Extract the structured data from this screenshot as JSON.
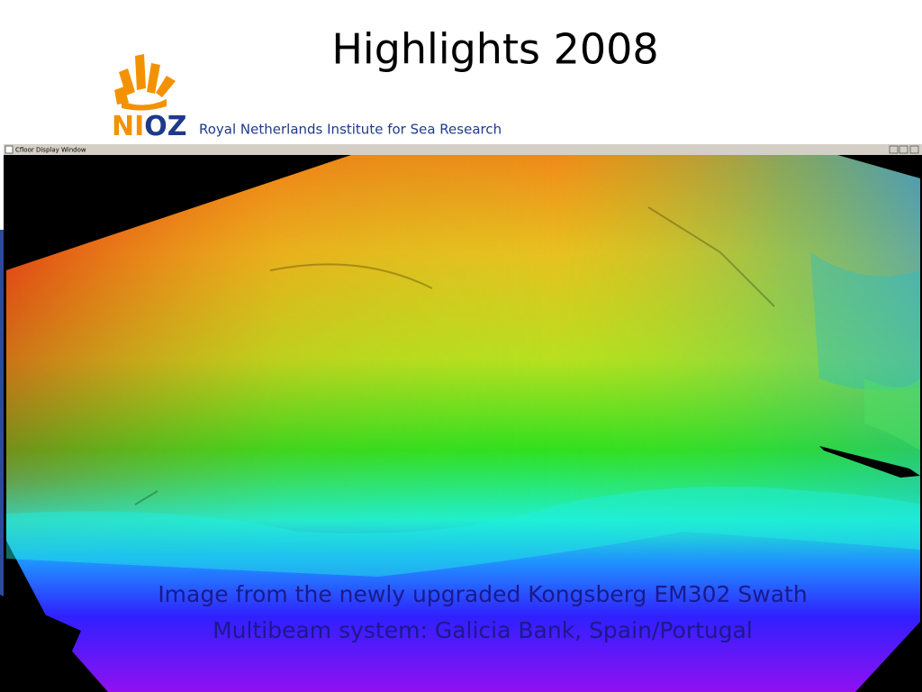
{
  "header": {
    "title": "Highlights 2008"
  },
  "logo": {
    "text_left": "NI",
    "text_right": "OZ",
    "institute": "Royal Netherlands Institute for Sea Research"
  },
  "window": {
    "title": "Cfloor Display Window"
  },
  "caption": {
    "lines": [
      "Image from the newly upgraded Kongsberg EM302 Swath",
      "Multibeam system: Galicia Bank, Spain/Portugal"
    ]
  }
}
